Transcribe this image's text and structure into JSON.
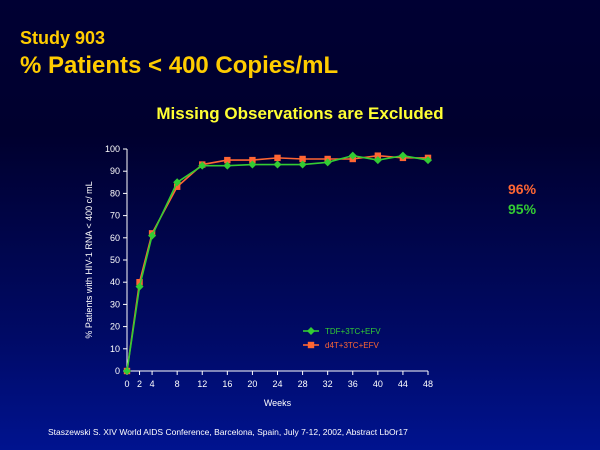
{
  "header": {
    "study": "Study 903",
    "title": "% Patients < 400 Copies/mL",
    "subtitle": "Missing Observations are Excluded"
  },
  "callouts": [
    {
      "text": "96%",
      "color": "#ff6633"
    },
    {
      "text": "95%",
      "color": "#33cc33"
    }
  ],
  "citation": "Staszewski S. XIV World AIDS Conference, Barcelona, Spain, July 7-12, 2002, Abstract LbOr17",
  "chart_data": {
    "type": "line",
    "xlabel": "Weeks",
    "ylabel": "% Patients with HIV-1 RNA < 400 c/ mL",
    "x": [
      0,
      2,
      4,
      8,
      12,
      16,
      20,
      24,
      28,
      32,
      36,
      40,
      44,
      48
    ],
    "xlim": [
      0,
      48
    ],
    "ylim": [
      0,
      100
    ],
    "xticks": [
      0,
      2,
      4,
      8,
      12,
      16,
      20,
      24,
      28,
      32,
      36,
      40,
      44,
      48
    ],
    "yticks": [
      0,
      10,
      20,
      30,
      40,
      50,
      60,
      70,
      80,
      90,
      100
    ],
    "legend_position": "bottom-right",
    "grid": false,
    "series": [
      {
        "name": "TDF+3TC+EFV",
        "color": "#33cc33",
        "marker": "diamond",
        "values": [
          0,
          38,
          61,
          85,
          92.5,
          92.5,
          93,
          93,
          93,
          94,
          97,
          95,
          97,
          95
        ]
      },
      {
        "name": "d4T+3TC+EFV",
        "color": "#ff6633",
        "marker": "square",
        "values": [
          0,
          40,
          62,
          83,
          93,
          95,
          95,
          96,
          95.5,
          95.5,
          95.5,
          97,
          96,
          96
        ]
      }
    ]
  }
}
